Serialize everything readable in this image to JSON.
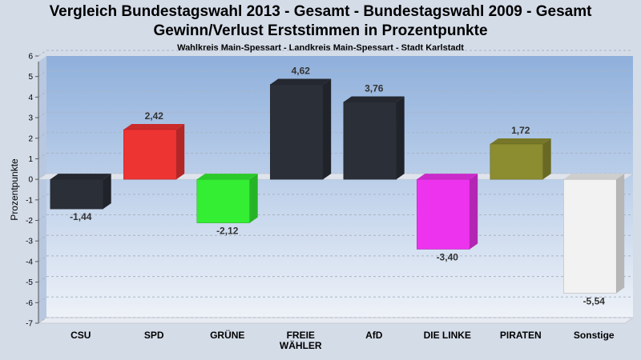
{
  "header": {
    "title_line1": "Vergleich Bundestagswahl 2013 - Gesamt - Bundestagswahl 2009 - Gesamt",
    "title_line2": "Gewinn/Verlust Erststimmen in Prozentpunkte",
    "subtitle": "Wahlkreis Main-Spessart - Landkreis Main-Spessart - Stadt Karlstadt"
  },
  "chart_data": {
    "type": "bar",
    "title": "Vergleich Bundestagswahl 2013 - Gesamt - Bundestagswahl 2009 - Gesamt",
    "subtitle": "Gewinn/Verlust Erststimmen in Prozentpunkte",
    "ylabel": "Prozentpunkte",
    "xlabel": "",
    "ylim": [
      -7,
      6
    ],
    "yticks": [
      "6",
      "5",
      "4",
      "3",
      "2",
      "1",
      "0",
      "-1",
      "-2",
      "-3",
      "-4",
      "-5",
      "-6",
      "-7"
    ],
    "grid": true,
    "categories": [
      "CSU",
      "SPD",
      "GRÜNE",
      "FREIE WÄHLER",
      "AfD",
      "DIE LINKE",
      "PIRATEN",
      "Sonstige"
    ],
    "category_lines": [
      [
        "CSU"
      ],
      [
        "SPD"
      ],
      [
        "GRÜNE"
      ],
      [
        "FREIE",
        "WÄHLER"
      ],
      [
        "AfD"
      ],
      [
        "DIE LINKE"
      ],
      [
        "PIRATEN"
      ],
      [
        "Sonstige"
      ]
    ],
    "values": [
      -1.44,
      2.42,
      -2.12,
      4.62,
      3.76,
      -3.4,
      1.72,
      -5.54
    ],
    "value_labels": [
      "-1,44",
      "2,42",
      "-2,12",
      "4,62",
      "3,76",
      "-3,40",
      "1,72",
      "-5,54"
    ],
    "colors": [
      "#2b2f38",
      "#ee3333",
      "#33ee33",
      "#2b2f38",
      "#2b2f38",
      "#ee33ee",
      "#8c8c30",
      "#f2f2f2"
    ]
  }
}
